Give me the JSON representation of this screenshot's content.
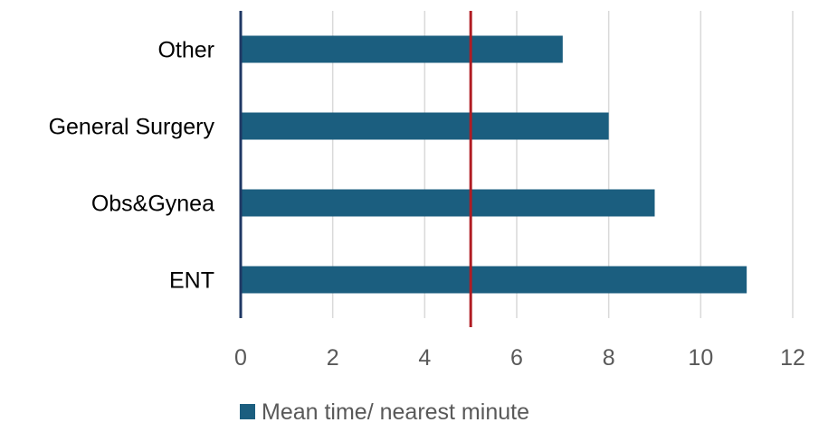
{
  "chart_data": {
    "type": "bar",
    "orientation": "horizontal",
    "categories": [
      "ENT",
      "Obs&Gynea",
      "General Surgery",
      "Other"
    ],
    "series": [
      {
        "name": "Mean time/ nearest minute",
        "values": [
          11,
          9,
          8,
          7
        ],
        "color": "#1b5e7f"
      }
    ],
    "reference_line": {
      "value": 5,
      "color": "#b01c23"
    },
    "xlim": [
      0,
      12
    ],
    "x_ticks": [
      "0",
      "2",
      "4",
      "6",
      "8",
      "10",
      "12"
    ],
    "grid": true,
    "grid_color": "#d9d9d9",
    "axis_color": "#1f3864",
    "legend": {
      "position": "bottom",
      "label": "Mean time/ nearest minute"
    }
  }
}
